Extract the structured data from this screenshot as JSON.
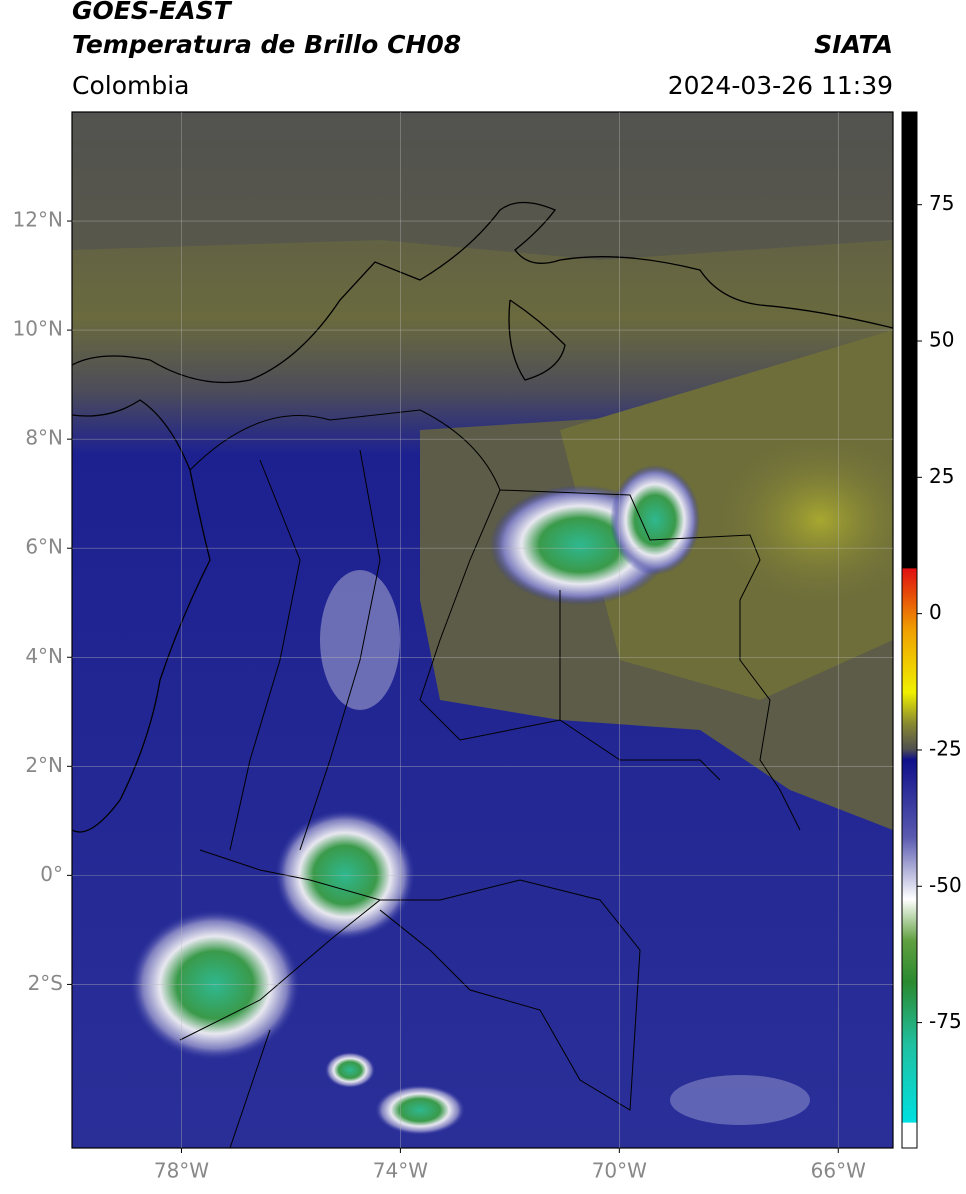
{
  "header": {
    "title": "GOES-EAST",
    "subtitle": "Temperatura de Brillo CH08",
    "source": "SIATA",
    "region": "Colombia",
    "datetime": "2024-03-26 11:39"
  },
  "map": {
    "xlim": [
      -80,
      -65
    ],
    "ylim": [
      -5,
      14
    ],
    "xticks": [
      {
        "value": -78,
        "label": "78°W"
      },
      {
        "value": -74,
        "label": "74°W"
      },
      {
        "value": -70,
        "label": "70°W"
      },
      {
        "value": -66,
        "label": "66°W"
      }
    ],
    "yticks": [
      {
        "value": 12,
        "label": "12°N"
      },
      {
        "value": 10,
        "label": "10°N"
      },
      {
        "value": 8,
        "label": "8°N"
      },
      {
        "value": 6,
        "label": "6°N"
      },
      {
        "value": 4,
        "label": "4°N"
      },
      {
        "value": 2,
        "label": "2°N"
      },
      {
        "value": 0,
        "label": "0°"
      },
      {
        "value": -2,
        "label": "2°S"
      }
    ],
    "grid": true
  },
  "colorbar": {
    "lim": [
      -98,
      92
    ],
    "ticks": [
      75,
      50,
      25,
      0,
      -25,
      -50,
      -75
    ]
  }
}
